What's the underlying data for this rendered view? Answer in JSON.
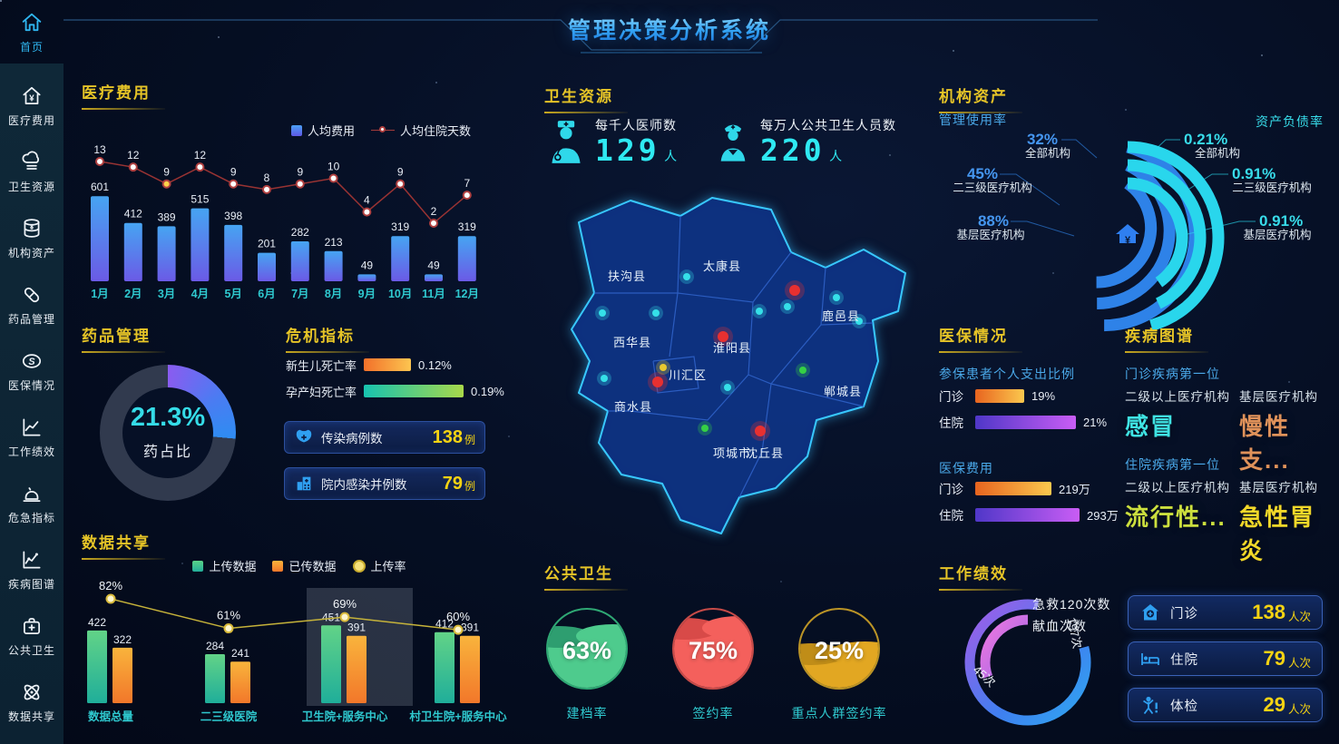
{
  "header": {
    "title": "管理决策分析系统"
  },
  "sidebar": {
    "items": [
      {
        "label": "首页"
      },
      {
        "label": "医疗费用"
      },
      {
        "label": "卫生资源"
      },
      {
        "label": "机构资产"
      },
      {
        "label": "药品管理"
      },
      {
        "label": "医保情况"
      },
      {
        "label": "工作绩效"
      },
      {
        "label": "危急指标"
      },
      {
        "label": "疾病图谱"
      },
      {
        "label": "公共卫生"
      },
      {
        "label": "数据共享"
      }
    ]
  },
  "sections": {
    "medical_cost": {
      "title": "医疗费用"
    },
    "drug_management": {
      "title": "药品管理",
      "percent": "21.3%",
      "label": "药占比"
    },
    "crisis": {
      "title": "危机指标",
      "bars": [
        {
          "label": "新生儿死亡率",
          "value": "0.12%"
        },
        {
          "label": "孕产妇死亡率",
          "value": "0.19%"
        }
      ],
      "cards": [
        {
          "label": "传染病例数",
          "value": "138",
          "unit": "例"
        },
        {
          "label": "院内感染并例数",
          "value": "79",
          "unit": "例"
        }
      ]
    },
    "data_share": {
      "title": "数据共享"
    },
    "health_resource": {
      "title": "卫生资源",
      "stats": [
        {
          "label": "每千人医师数",
          "value": "129",
          "unit": "人"
        },
        {
          "label": "每万人公共卫生人员数",
          "value": "220",
          "unit": "人"
        }
      ]
    },
    "public_health": {
      "title": "公共卫生",
      "gauges": [
        {
          "percent": "63%",
          "label": "建档率",
          "color": "#4ecb8d",
          "ring": "#2fa874",
          "wave": "#2e9e70"
        },
        {
          "percent": "75%",
          "label": "签约率",
          "color": "#f4605c",
          "ring": "#c74b48",
          "wave": "#d84a48"
        },
        {
          "percent": "25%",
          "label": "重点人群签约率",
          "color": "#e2a722",
          "ring": "#bb9426",
          "wave": "#c08d18"
        }
      ]
    },
    "institution_asset": {
      "title": "机构资产",
      "left_title": "管理使用率",
      "right_title": "资产负债率",
      "left": [
        {
          "value": "32%",
          "label": "全部机构"
        },
        {
          "value": "45%",
          "label": "二三级医疗机构"
        },
        {
          "value": "88%",
          "label": "基层医疗机构"
        }
      ],
      "right": [
        {
          "value": "0.21%",
          "label": "全部机构"
        },
        {
          "value": "0.91%",
          "label": "二三级医疗机构"
        },
        {
          "value": "0.91%",
          "label": "基层医疗机构"
        }
      ]
    },
    "insurance": {
      "title": "医保情况",
      "groups": [
        {
          "subtitle": "参保患者个人支出比例",
          "rows": [
            {
              "label": "门诊",
              "value": "19%"
            },
            {
              "label": "住院",
              "value": "21%"
            }
          ]
        },
        {
          "subtitle": "医保费用",
          "rows": [
            {
              "label": "门诊",
              "value": "219万"
            },
            {
              "label": "住院",
              "value": "293万"
            }
          ]
        }
      ]
    },
    "disease": {
      "title": "疾病图谱",
      "groups": [
        {
          "subtitle": "门诊疾病第一位",
          "items": [
            {
              "org": "二级以上医疗机构",
              "disease": "感冒",
              "color": "#3fe3e3"
            },
            {
              "org": "基层医疗机构",
              "disease": "慢性支...",
              "color": "#e0925a"
            }
          ]
        },
        {
          "subtitle": "住院疾病第一位",
          "items": [
            {
              "org": "二级以上医疗机构",
              "disease": "流行性...",
              "color": "#ccdf3e"
            },
            {
              "org": "基层医疗机构",
              "disease": "急性胃炎",
              "color": "#f2d829"
            }
          ]
        }
      ]
    },
    "performance": {
      "title": "工作绩效",
      "ring": [
        {
          "label": "急救120次数",
          "value": "197次"
        },
        {
          "label": "献血次数",
          "value": "45次"
        }
      ],
      "cards": [
        {
          "label": "门诊",
          "value": "138",
          "unit": "人次"
        },
        {
          "label": "住院",
          "value": "79",
          "unit": "人次"
        },
        {
          "label": "体检",
          "value": "29",
          "unit": "人次"
        }
      ]
    }
  },
  "map": {
    "labels": [
      "扶沟县",
      "太康县",
      "西华县",
      "淮阳县",
      "川汇区",
      "商水县",
      "鹿邑县",
      "郸城县",
      "项城市",
      "沈丘县"
    ]
  },
  "colors": {
    "accent_yellow": "#e6c427",
    "accent_cyan": "#35dce8",
    "accent_blue": "#3f93f0",
    "bar_blue_top": "#46a4f2",
    "bar_blue_bottom": "#6b5ae6",
    "value_yellow": "#f5d312"
  },
  "chart_data": [
    {
      "type": "bar",
      "title": "医疗费用",
      "categories": [
        "1月",
        "2月",
        "3月",
        "4月",
        "5月",
        "6月",
        "7月",
        "8月",
        "9月",
        "10月",
        "11月",
        "12月"
      ],
      "series": [
        {
          "name": "人均费用",
          "type": "bar",
          "values": [
            601,
            412,
            389,
            515,
            398,
            201,
            282,
            213,
            49,
            319,
            49,
            319
          ]
        },
        {
          "name": "人均住院天数",
          "type": "line",
          "values": [
            13,
            12,
            9,
            12,
            9,
            8,
            9,
            10,
            4,
            9,
            2,
            7
          ]
        }
      ],
      "legend_position": "top",
      "grid": false
    },
    {
      "type": "bar",
      "title": "数据共享",
      "categories": [
        "数据总量",
        "二三级医院",
        "卫生院+服务中心",
        "村卫生院+服务中心"
      ],
      "series": [
        {
          "name": "上传数据",
          "type": "bar",
          "values": [
            422,
            284,
            451,
            412
          ]
        },
        {
          "name": "已传数据",
          "type": "bar",
          "values": [
            322,
            241,
            391,
            391
          ]
        },
        {
          "name": "上传率",
          "type": "line",
          "values": [
            82,
            61,
            69,
            60
          ],
          "unit": "%"
        }
      ],
      "legend_position": "top",
      "grid": false
    },
    {
      "type": "pie",
      "title": "药品管理",
      "label": "药占比",
      "value": 21.3
    },
    {
      "type": "bar",
      "title": "危机指标",
      "categories": [
        "新生儿死亡率",
        "孕产妇死亡率"
      ],
      "values": [
        0.12,
        0.19
      ],
      "unit": "%"
    },
    {
      "type": "bar",
      "title": "医保情况-参保患者个人支出比例",
      "categories": [
        "门诊",
        "住院"
      ],
      "values": [
        19,
        21
      ],
      "unit": "%"
    },
    {
      "type": "bar",
      "title": "医保情况-医保费用",
      "categories": [
        "门诊",
        "住院"
      ],
      "values": [
        219,
        293
      ],
      "unit": "万"
    },
    {
      "type": "pie",
      "title": "公共卫生",
      "categories": [
        "建档率",
        "签约率",
        "重点人群签约率"
      ],
      "values": [
        63,
        75,
        25
      ],
      "unit": "%"
    },
    {
      "type": "pie",
      "title": "工作绩效",
      "categories": [
        "急救120次数",
        "献血次数"
      ],
      "values": [
        197,
        45
      ],
      "unit": "次"
    },
    {
      "type": "pie",
      "title": "机构资产-管理使用率",
      "categories": [
        "全部机构",
        "二三级医疗机构",
        "基层医疗机构"
      ],
      "values": [
        32,
        45,
        88
      ],
      "unit": "%"
    },
    {
      "type": "pie",
      "title": "机构资产-资产负债率",
      "categories": [
        "全部机构",
        "二三级医疗机构",
        "基层医疗机构"
      ],
      "values": [
        0.21,
        0.91,
        0.91
      ],
      "unit": "%"
    }
  ]
}
